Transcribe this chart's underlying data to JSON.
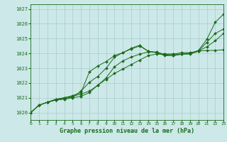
{
  "title": "Graphe pression niveau de la mer (hPa)",
  "bg_color": "#cce8e8",
  "grid_color": "#aacccc",
  "line_color": "#1a6b1a",
  "xlim": [
    0,
    23
  ],
  "ylim": [
    1019.5,
    1027.3
  ],
  "yticks": [
    1020,
    1021,
    1022,
    1023,
    1024,
    1025,
    1026,
    1027
  ],
  "xticks": [
    0,
    1,
    2,
    3,
    4,
    5,
    6,
    7,
    8,
    9,
    10,
    11,
    12,
    13,
    14,
    15,
    16,
    17,
    18,
    19,
    20,
    21,
    22,
    23
  ],
  "lines": [
    [
      1020.0,
      1020.5,
      1020.7,
      1020.85,
      1020.9,
      1021.0,
      1021.1,
      1021.35,
      1021.85,
      1022.35,
      1023.1,
      1023.5,
      1023.75,
      1023.95,
      1024.1,
      1024.1,
      1023.9,
      1023.85,
      1023.95,
      1024.0,
      1024.2,
      1024.95,
      1026.1,
      1026.65
    ],
    [
      1020.0,
      1020.5,
      1020.7,
      1020.85,
      1020.95,
      1021.05,
      1021.45,
      1022.05,
      1022.45,
      1023.0,
      1023.75,
      1024.05,
      1024.3,
      1024.5,
      1024.15,
      1024.05,
      1023.85,
      1023.85,
      1023.95,
      1024.0,
      1024.15,
      1024.75,
      1025.35,
      1025.65
    ],
    [
      1020.0,
      1020.5,
      1020.7,
      1020.9,
      1021.0,
      1021.15,
      1021.35,
      1022.75,
      1023.15,
      1023.45,
      1023.85,
      1024.05,
      1024.35,
      1024.55,
      1024.15,
      1024.05,
      1023.95,
      1023.95,
      1024.05,
      1024.05,
      1024.15,
      1024.2,
      1024.2,
      1024.25
    ],
    [
      1020.0,
      1020.5,
      1020.7,
      1020.9,
      1021.0,
      1021.1,
      1021.25,
      1021.45,
      1021.85,
      1022.25,
      1022.65,
      1022.95,
      1023.25,
      1023.55,
      1023.85,
      1023.95,
      1023.95,
      1023.95,
      1023.95,
      1023.95,
      1024.15,
      1024.45,
      1024.85,
      1025.35
    ]
  ]
}
